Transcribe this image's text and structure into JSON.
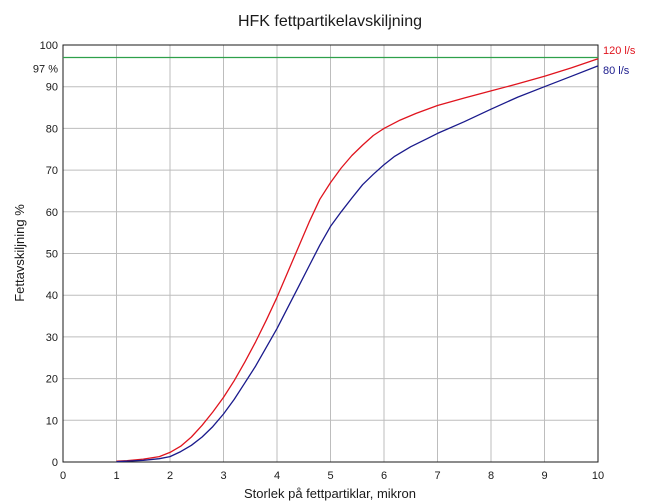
{
  "chart_data": {
    "type": "line",
    "title": "HFK fettpartikelavskiljning",
    "xlabel": "Storlek på fettpartiklar, mikron",
    "ylabel": "Fettavskiljning %",
    "xlim": [
      0,
      10
    ],
    "ylim": [
      0,
      100
    ],
    "x_ticks": [
      "0",
      "1",
      "2",
      "3",
      "4",
      "5",
      "6",
      "7",
      "8",
      "9",
      "10"
    ],
    "y_ticks": [
      "0",
      "10",
      "20",
      "30",
      "40",
      "50",
      "60",
      "70",
      "80",
      "90",
      "100"
    ],
    "grid": true,
    "colors": {
      "series_120": "#e0141e",
      "series_80": "#1a1a8c",
      "reference": "#2ea04a",
      "grid": "#bdbdbd"
    },
    "reference_line": {
      "label": "97 %",
      "y": 97
    },
    "series": [
      {
        "name": "120 l/s",
        "x": [
          1.0,
          1.2,
          1.5,
          1.8,
          2.0,
          2.2,
          2.4,
          2.6,
          2.8,
          3.0,
          3.2,
          3.4,
          3.6,
          3.8,
          4.0,
          4.2,
          4.4,
          4.6,
          4.8,
          5.0,
          5.2,
          5.4,
          5.6,
          5.8,
          6.0,
          6.3,
          6.6,
          7.0,
          7.5,
          8.0,
          8.5,
          9.0,
          9.5,
          10.0
        ],
        "y": [
          0.2,
          0.3,
          0.7,
          1.3,
          2.3,
          3.8,
          6.0,
          8.8,
          12.0,
          15.5,
          19.5,
          24.0,
          28.8,
          34.0,
          39.5,
          45.5,
          51.5,
          57.5,
          63.0,
          67.0,
          70.5,
          73.5,
          76.0,
          78.3,
          80.0,
          82.0,
          83.6,
          85.5,
          87.3,
          89.0,
          90.7,
          92.5,
          94.5,
          96.7
        ]
      },
      {
        "name": "80 l/s",
        "x": [
          1.0,
          1.5,
          1.8,
          2.0,
          2.2,
          2.4,
          2.6,
          2.8,
          3.0,
          3.2,
          3.4,
          3.6,
          3.8,
          4.0,
          4.2,
          4.4,
          4.6,
          4.8,
          5.0,
          5.2,
          5.4,
          5.6,
          5.8,
          6.0,
          6.2,
          6.5,
          6.8,
          7.0,
          7.5,
          8.0,
          8.5,
          9.0,
          9.5,
          10.0
        ],
        "y": [
          0.1,
          0.4,
          0.8,
          1.3,
          2.5,
          4.0,
          6.0,
          8.5,
          11.5,
          15.0,
          19.0,
          23.0,
          27.5,
          32.0,
          37.0,
          42.0,
          47.0,
          52.0,
          56.5,
          60.0,
          63.3,
          66.5,
          69.0,
          71.3,
          73.3,
          75.6,
          77.5,
          78.8,
          81.6,
          84.6,
          87.5,
          90.0,
          92.5,
          95.0
        ]
      }
    ]
  }
}
